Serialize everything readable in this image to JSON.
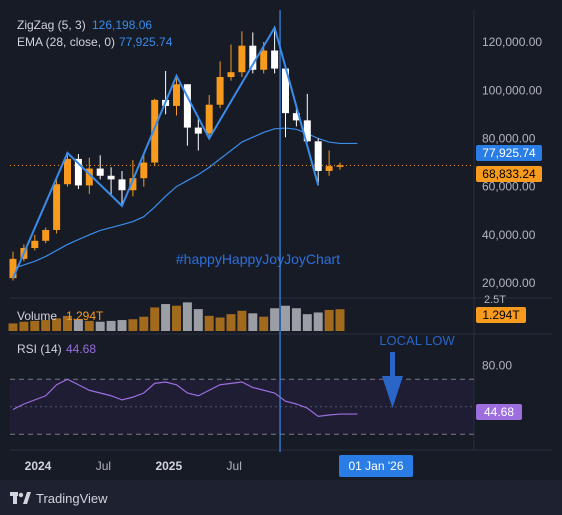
{
  "chart_data": {
    "type": "candlestick",
    "symbol_interval": "monthly",
    "colors": {
      "up": "#f79a1d",
      "down": "#ffffff",
      "ema": "#3a8bea",
      "zigzag": "#3a8bea",
      "rsi": "#9c6ede",
      "volume_up": "#a26a1c",
      "volume_down": "#9c9ea6",
      "last_price": "#f79a1d",
      "cursor_line": "#3a8bea",
      "annotation": "#2a66c8"
    },
    "indicators": {
      "zigzag": {
        "label": "ZigZag (5, 3)",
        "value": "126,198.06"
      },
      "ema": {
        "label": "EMA (28, close, 0)",
        "value": "77,925.74"
      },
      "volume": {
        "label": "Volume",
        "value": "1.294T"
      },
      "rsi": {
        "label": "RSI (14)",
        "value": "44.68"
      }
    },
    "price_axis": {
      "ticks": [
        "120,000.00",
        "100,000.00",
        "80,000.00",
        "60,000.00",
        "40,000.00",
        "20,000.00"
      ],
      "tick_values": [
        120000,
        100000,
        80000,
        60000,
        40000,
        20000
      ],
      "ylim": [
        15000,
        130000
      ]
    },
    "price_badges": {
      "ema": "77,925.74",
      "last": "68,833.24",
      "volume": "1.294T",
      "volume_scale": "2.5T",
      "rsi": "44.68"
    },
    "rsi_axis": {
      "ticks": [
        "80.00"
      ],
      "ylim": [
        20,
        100
      ],
      "bands": [
        70,
        50,
        30
      ]
    },
    "time_axis": {
      "labels": [
        "2024",
        "Jul",
        "2025",
        "Jul",
        "Jul"
      ],
      "label_positions_month": [
        0,
        6,
        12,
        18,
        30
      ],
      "cursor_label": "01 Jan '26",
      "cursor_month": 24
    },
    "watermark": "#happyHappyJoyJoyChart",
    "annotation": "LOCAL LOW",
    "footer": "TradingView",
    "candles": [
      {
        "o": 22000,
        "h": 33000,
        "l": 21000,
        "c": 30000
      },
      {
        "o": 30000,
        "h": 36000,
        "l": 29000,
        "c": 34500
      },
      {
        "o": 34500,
        "h": 40000,
        "l": 33500,
        "c": 37500
      },
      {
        "o": 37500,
        "h": 43000,
        "l": 36500,
        "c": 42000
      },
      {
        "o": 42000,
        "h": 63000,
        "l": 40500,
        "c": 61000
      },
      {
        "o": 61000,
        "h": 74000,
        "l": 60000,
        "c": 71500
      },
      {
        "o": 71500,
        "h": 73500,
        "l": 59000,
        "c": 60500
      },
      {
        "o": 60500,
        "h": 72000,
        "l": 57000,
        "c": 67500
      },
      {
        "o": 67500,
        "h": 73000,
        "l": 63000,
        "c": 64500
      },
      {
        "o": 64500,
        "h": 68000,
        "l": 56000,
        "c": 63000
      },
      {
        "o": 63000,
        "h": 66500,
        "l": 52000,
        "c": 58500
      },
      {
        "o": 58500,
        "h": 71000,
        "l": 56000,
        "c": 63500
      },
      {
        "o": 63500,
        "h": 73500,
        "l": 60000,
        "c": 70000
      },
      {
        "o": 70000,
        "h": 96500,
        "l": 68500,
        "c": 96000
      },
      {
        "o": 96000,
        "h": 108000,
        "l": 90000,
        "c": 93500
      },
      {
        "o": 93500,
        "h": 106000,
        "l": 89500,
        "c": 102500
      },
      {
        "o": 102500,
        "h": 102500,
        "l": 77000,
        "c": 84500
      },
      {
        "o": 84500,
        "h": 88000,
        "l": 75000,
        "c": 82000
      },
      {
        "o": 82000,
        "h": 98000,
        "l": 80000,
        "c": 94000
      },
      {
        "o": 94000,
        "h": 112000,
        "l": 92500,
        "c": 105500
      },
      {
        "o": 105500,
        "h": 119000,
        "l": 104000,
        "c": 107500
      },
      {
        "o": 107500,
        "h": 124500,
        "l": 105500,
        "c": 118500
      },
      {
        "o": 118500,
        "h": 124000,
        "l": 107000,
        "c": 108500
      },
      {
        "o": 108500,
        "h": 120000,
        "l": 107000,
        "c": 116500
      },
      {
        "o": 116500,
        "h": 126000,
        "l": 107000,
        "c": 109000
      },
      {
        "o": 109000,
        "h": 110500,
        "l": 80500,
        "c": 90500
      },
      {
        "o": 90500,
        "h": 94000,
        "l": 85000,
        "c": 87500
      },
      {
        "o": 87500,
        "h": 98500,
        "l": 78500,
        "c": 78800
      },
      {
        "o": 78800,
        "h": 80000,
        "l": 60500,
        "c": 66500
      },
      {
        "o": 66500,
        "h": 75000,
        "l": 64500,
        "c": 68500
      },
      {
        "o": 68500,
        "h": 70000,
        "l": 67000,
        "c": 68833
      }
    ],
    "volume": [
      0.45,
      0.55,
      0.6,
      0.65,
      0.75,
      0.9,
      0.7,
      0.6,
      0.55,
      0.6,
      0.65,
      0.7,
      0.85,
      1.4,
      1.6,
      1.5,
      1.7,
      1.3,
      0.9,
      0.8,
      1.0,
      1.2,
      1.05,
      0.85,
      1.35,
      1.5,
      1.35,
      1.0,
      1.1,
      1.25,
      1.294
    ],
    "ema_values": [
      26000,
      27500,
      29000,
      31000,
      33500,
      36000,
      38000,
      40000,
      41800,
      43000,
      44200,
      45500,
      47500,
      51500,
      56000,
      60000,
      62500,
      65000,
      68000,
      71500,
      75000,
      78500,
      80500,
      82500,
      84000,
      84300,
      83800,
      82000,
      80000,
      78500,
      77926
    ],
    "rsi_values": [
      48,
      52,
      55,
      58,
      66,
      70,
      66,
      62,
      60,
      58,
      55,
      57,
      60,
      67,
      68,
      66,
      60,
      58,
      62,
      66,
      67,
      68,
      64,
      62,
      60,
      54,
      52,
      49,
      43,
      44,
      44.68
    ],
    "zigzag_points": [
      {
        "month": 0,
        "price": 22000
      },
      {
        "month": 5,
        "price": 74000
      },
      {
        "month": 10,
        "price": 52000
      },
      {
        "month": 15,
        "price": 106000
      },
      {
        "month": 18,
        "price": 80000
      },
      {
        "month": 24,
        "price": 126000
      },
      {
        "month": 28,
        "price": 60500
      }
    ]
  }
}
